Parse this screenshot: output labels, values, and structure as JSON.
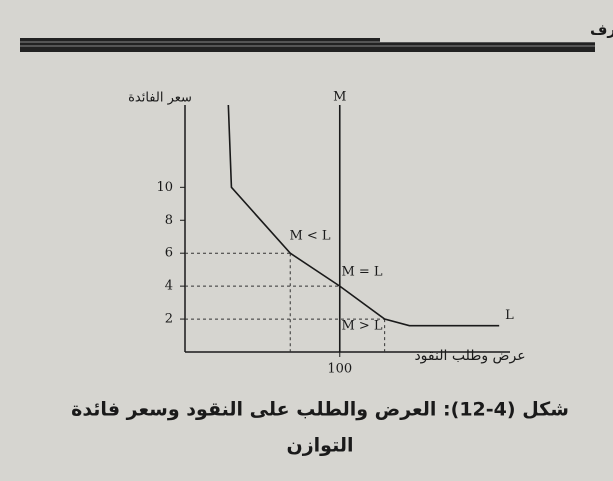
{
  "header": {
    "title": "الفصل الثاني عشر: النقود والمصارف"
  },
  "chart_data": {
    "type": "line",
    "y_label": "سعر الفائدة",
    "x_label": "عرض وطلب النقود",
    "xlim": [
      0,
      210
    ],
    "ylim": [
      0,
      15
    ],
    "xticks": [
      100
    ],
    "yticks": [
      2,
      4,
      6,
      8,
      10
    ],
    "series": [
      {
        "name": "L",
        "color": "#1a1a1a",
        "x": [
          28,
          30,
          68,
          100,
          129,
          145,
          203
        ],
        "values": [
          15,
          10,
          6,
          4,
          2,
          1.6,
          1.6
        ]
      },
      {
        "name": "M",
        "color": "#1a1a1a",
        "x": [
          100,
          100
        ],
        "values": [
          0,
          15
        ]
      }
    ],
    "annotations": [
      "M < L",
      "M = L",
      "M > L"
    ]
  },
  "caption": {
    "line1": "شكل (4-12): العرض والطلب على النقود وسعر فائدة",
    "line2": "التوازن"
  }
}
